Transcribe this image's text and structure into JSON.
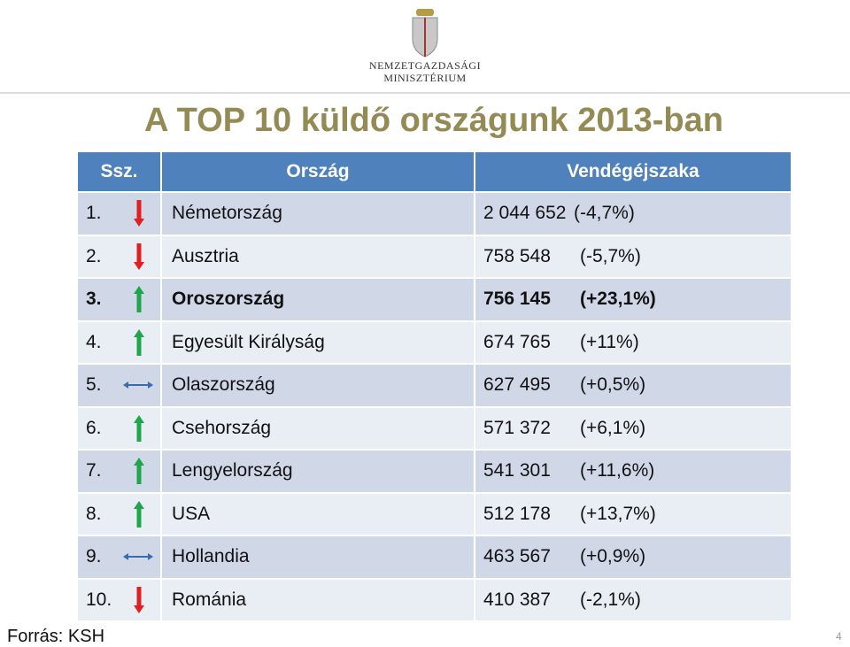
{
  "header": {
    "ministry_line1": "Nemzetgazdasági",
    "ministry_line2": "Minisztérium"
  },
  "title": "A TOP 10 küldő országunk 2013-ban",
  "table": {
    "columns": [
      "Ssz.",
      "Ország",
      "Vendégéjszaka"
    ],
    "rows": [
      [
        "1.",
        "Németország",
        "2 044 652",
        "(-4,7%)"
      ],
      [
        "2.",
        "Ausztria",
        "758 548",
        "(-5,7%)"
      ],
      [
        "3.",
        "Oroszország",
        "756 145",
        "(+23,1%)"
      ],
      [
        "4.",
        "Egyesült Királyság",
        "674 765",
        "(+11%)"
      ],
      [
        "5.",
        "Olaszország",
        "627 495",
        "(+0,5%)"
      ],
      [
        "6.",
        "Csehország",
        "571 372",
        "(+6,1%)"
      ],
      [
        "7.",
        "Lengyelország",
        "541 301",
        "(+11,6%)"
      ],
      [
        "8.",
        "USA",
        "512 178",
        "(+13,7%)"
      ],
      [
        "9.",
        "Hollandia",
        "463 567",
        "(+0,9%)"
      ],
      [
        "10.",
        "Románia",
        "410 387",
        "(-2,1%)"
      ]
    ]
  },
  "footer": {
    "source": "Forrás: KSH",
    "page": "4"
  }
}
